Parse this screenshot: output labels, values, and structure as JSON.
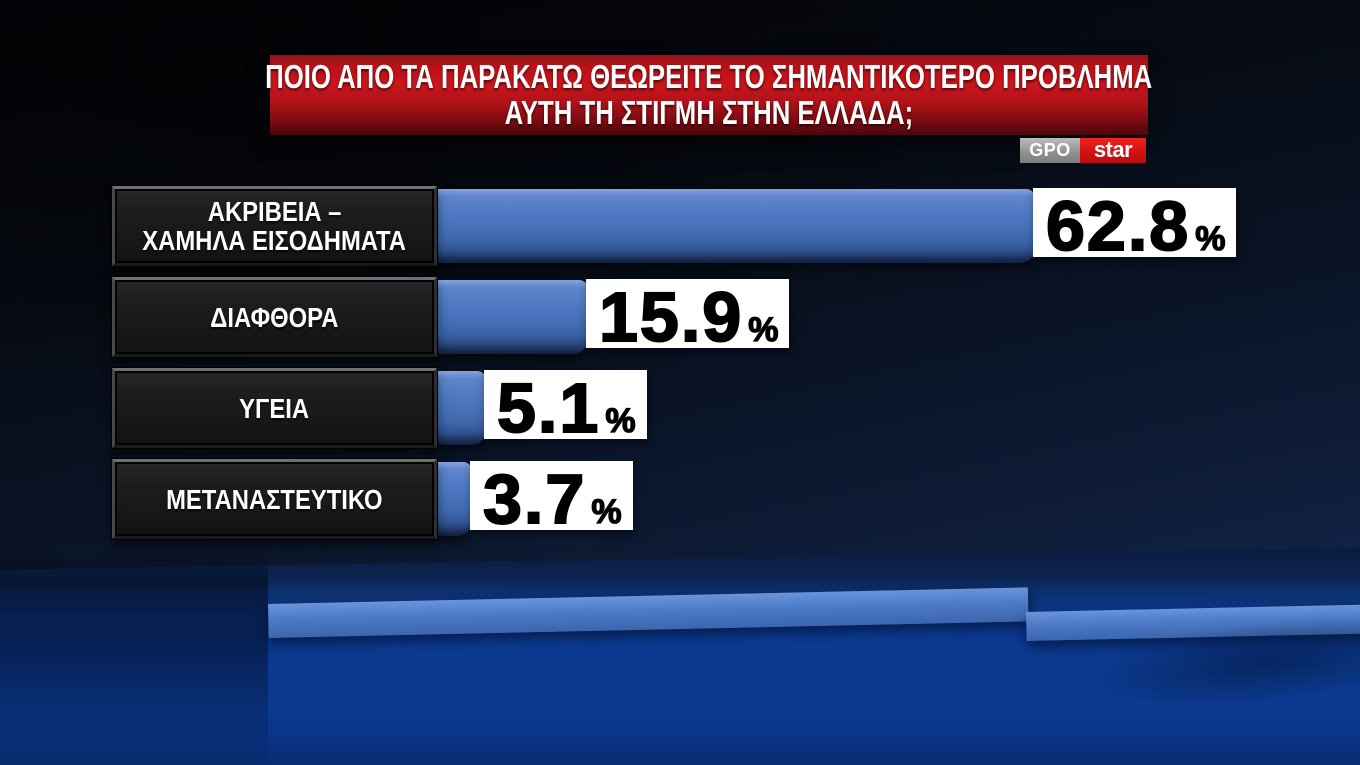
{
  "header": {
    "line1": "ΠΟΙΟ ΑΠΟ ΤΑ ΠΑΡΑΚΑΤΩ ΘΕΩΡΕΙΤΕ ΤΟ ΣΗΜΑΝΤΙΚΟΤΕΡΟ ΠΡΟΒΛΗΜΑ",
    "line2": "ΑΥΤΗ ΤΗ ΣΤΙΓΜΗ ΣΤΗΝ ΕΛΛΑΔΑ;"
  },
  "logo": {
    "gpo": "GPO",
    "star": "star"
  },
  "rows": [
    {
      "label_lines": [
        "ΑΚΡΙΒΕΙΑ –",
        "ΧΑΜΗΛΑ ΕΙΣΟΔΗΜΑΤΑ"
      ],
      "value": "62.8",
      "unit": "%"
    },
    {
      "label_lines": [
        "ΔΙΑΦΘΟΡΑ"
      ],
      "value": "15.9",
      "unit": "%"
    },
    {
      "label_lines": [
        "ΥΓΕΙΑ"
      ],
      "value": "5.1",
      "unit": "%"
    },
    {
      "label_lines": [
        "ΜΕΤΑΝΑΣΤΕΥΤΙΚΟ"
      ],
      "value": "3.7",
      "unit": "%"
    }
  ],
  "chart_data": {
    "type": "bar",
    "orientation": "horizontal",
    "title": "ΠΟΙΟ ΑΠΟ ΤΑ ΠΑΡΑΚΑΤΩ ΘΕΩΡΕΙΤΕ ΤΟ ΣΗΜΑΝΤΙΚΟΤΕΡΟ ΠΡΟΒΛΗΜΑ ΑΥΤΗ ΤΗ ΣΤΙΓΜΗ ΣΤΗΝ ΕΛΛΑΔΑ;",
    "categories": [
      "ΑΚΡΙΒΕΙΑ – ΧΑΜΗΛΑ ΕΙΣΟΔΗΜΑΤΑ",
      "ΔΙΑΦΘΟΡΑ",
      "ΥΓΕΙΑ",
      "ΜΕΤΑΝΑΣΤΕΥΤΙΚΟ"
    ],
    "values": [
      62.8,
      15.9,
      5.1,
      3.7
    ],
    "unit": "%",
    "xlim": [
      0,
      66
    ],
    "grid": false,
    "legend": false,
    "source": "GPO star",
    "colors": {
      "bar": "#4a74bd",
      "bar_top": "#87a3dc",
      "bar_bottom": "#111f3c",
      "label_box_bg": "#1b1b1b",
      "value_box_bg": "#ffffff",
      "value_text": "#000000",
      "banner_red": "#c8161c",
      "background_navy": "#0a1426",
      "floor_blue": "#0b3a90",
      "band_light_blue": "#4e7cc8"
    }
  }
}
